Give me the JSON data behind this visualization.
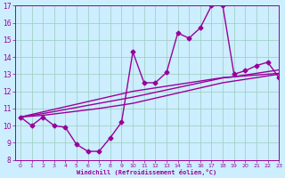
{
  "xlabel": "Windchill (Refroidissement éolien,°C)",
  "x": [
    0,
    1,
    2,
    3,
    4,
    5,
    6,
    7,
    8,
    9,
    10,
    11,
    12,
    13,
    14,
    15,
    16,
    17,
    18,
    19,
    20,
    21,
    22,
    23
  ],
  "y_main": [
    10.5,
    10.0,
    10.5,
    10.0,
    9.9,
    8.9,
    8.5,
    8.5,
    9.3,
    10.2,
    14.3,
    12.5,
    12.5,
    13.1,
    15.4,
    15.1,
    15.7,
    17.0,
    17.0,
    13.0,
    13.2,
    13.5,
    13.7,
    12.8
  ],
  "y_reg1": [
    10.5,
    10.65,
    10.8,
    10.95,
    11.1,
    11.25,
    11.4,
    11.55,
    11.7,
    11.85,
    12.0,
    12.1,
    12.2,
    12.3,
    12.4,
    12.5,
    12.6,
    12.7,
    12.8,
    12.85,
    12.9,
    12.95,
    13.0,
    13.05
  ],
  "y_reg2": [
    10.5,
    10.6,
    10.7,
    10.82,
    10.94,
    11.06,
    11.18,
    11.3,
    11.42,
    11.54,
    11.66,
    11.8,
    11.94,
    12.08,
    12.22,
    12.36,
    12.5,
    12.64,
    12.78,
    12.85,
    12.95,
    13.05,
    13.15,
    13.25
  ],
  "y_reg3": [
    10.5,
    10.55,
    10.6,
    10.68,
    10.76,
    10.84,
    10.92,
    11.0,
    11.1,
    11.2,
    11.3,
    11.45,
    11.6,
    11.75,
    11.9,
    12.05,
    12.2,
    12.35,
    12.5,
    12.6,
    12.7,
    12.8,
    12.9,
    13.0
  ],
  "ylim": [
    8,
    17
  ],
  "xlim": [
    -0.5,
    23
  ],
  "line_color": "#990099",
  "bg_color": "#cceeff",
  "grid_color": "#99ccbb",
  "marker": "D",
  "marker_size": 2.5,
  "linewidth": 1.0,
  "yticks": [
    8,
    9,
    10,
    11,
    12,
    13,
    14,
    15,
    16,
    17
  ],
  "xticks": [
    0,
    1,
    2,
    3,
    4,
    5,
    6,
    7,
    8,
    9,
    10,
    11,
    12,
    13,
    14,
    15,
    16,
    17,
    18,
    19,
    20,
    21,
    22,
    23
  ]
}
